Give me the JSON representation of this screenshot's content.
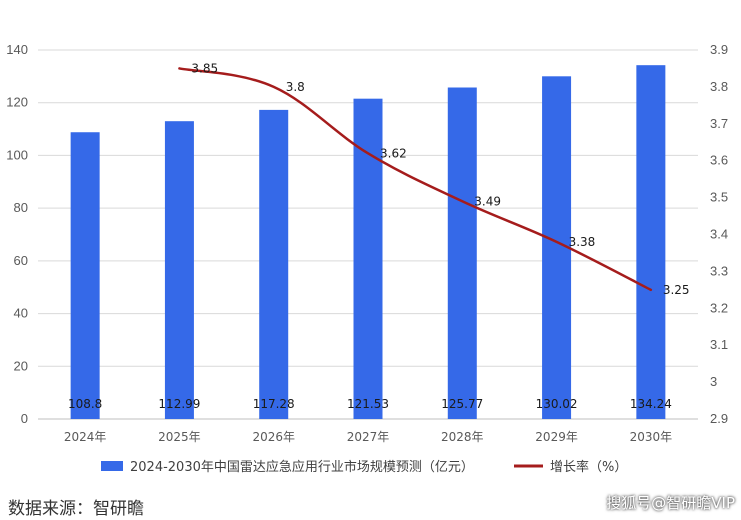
{
  "chart_data": {
    "type": "bar+line",
    "categories": [
      "2024年",
      "2025年",
      "2026年",
      "2027年",
      "2028年",
      "2029年",
      "2030年"
    ],
    "series": [
      {
        "name": "2024-2030年中国雷达应急应用行业市场规模预测（亿元）",
        "type": "bar",
        "axis": "left",
        "color": "#3569e8",
        "values": [
          108.8,
          112.99,
          117.28,
          121.53,
          125.77,
          130.02,
          134.24
        ],
        "labels": [
          "108.8",
          "112.99",
          "117.28",
          "121.53",
          "125.77",
          "130.02",
          "134.24"
        ]
      },
      {
        "name": "增长率（%）",
        "type": "line",
        "axis": "right",
        "color": "#a51c1c",
        "values": [
          null,
          3.85,
          3.8,
          3.62,
          3.49,
          3.38,
          3.25
        ],
        "labels": [
          null,
          "3.85",
          "3.8",
          "3.62",
          "3.49",
          "3.38",
          "3.25"
        ]
      }
    ],
    "y_left": {
      "ylim": [
        0,
        140
      ],
      "ticks": [
        0,
        20,
        40,
        60,
        80,
        100,
        120,
        140
      ],
      "tick_labels": [
        "0",
        "20",
        "40",
        "60",
        "80",
        "100",
        "120",
        "140"
      ]
    },
    "y_right": {
      "ylim": [
        2.9,
        3.9
      ],
      "ticks": [
        2.9,
        3.0,
        3.1,
        3.2,
        3.3,
        3.4,
        3.5,
        3.6,
        3.7,
        3.8,
        3.9
      ],
      "tick_labels": [
        "2.9",
        "3",
        "3.1",
        "3.2",
        "3.3",
        "3.4",
        "3.5",
        "3.6",
        "3.7",
        "3.8",
        "3.9"
      ]
    },
    "grid": true,
    "legend": "bottom"
  },
  "source_text": "数据来源：智研瞻",
  "watermark_text": "搜狐号@智研瞻VIP"
}
